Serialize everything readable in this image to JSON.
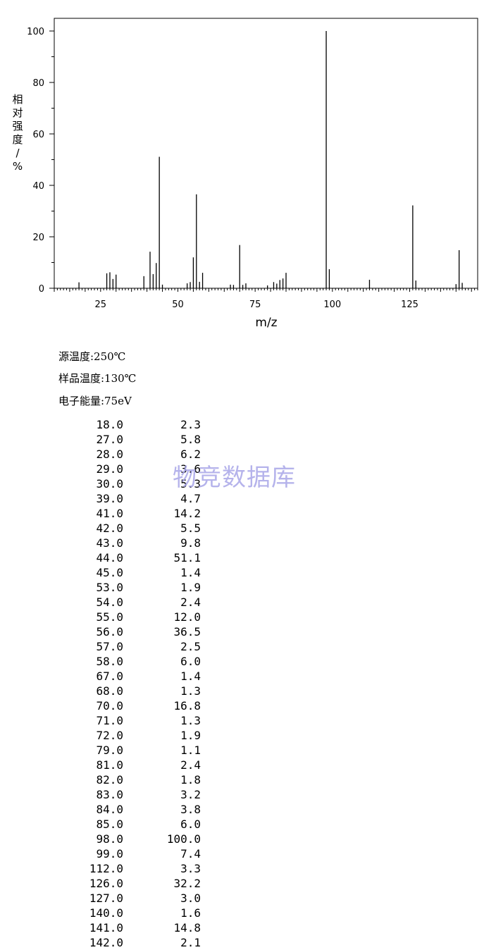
{
  "chart_data": {
    "type": "bar",
    "xlabel": "m/z",
    "ylabel": "相对强度/%",
    "xlim": [
      10,
      147
    ],
    "ylim": [
      0,
      105
    ],
    "x_ticks": [
      25,
      50,
      75,
      100,
      125
    ],
    "y_ticks": [
      0,
      20,
      40,
      60,
      80,
      100
    ],
    "grid": false,
    "peaks": [
      {
        "mz": 18.0,
        "intensity": 2.3
      },
      {
        "mz": 27.0,
        "intensity": 5.8
      },
      {
        "mz": 28.0,
        "intensity": 6.2
      },
      {
        "mz": 29.0,
        "intensity": 3.6
      },
      {
        "mz": 30.0,
        "intensity": 5.3
      },
      {
        "mz": 39.0,
        "intensity": 4.7
      },
      {
        "mz": 41.0,
        "intensity": 14.2
      },
      {
        "mz": 42.0,
        "intensity": 5.5
      },
      {
        "mz": 43.0,
        "intensity": 9.8
      },
      {
        "mz": 44.0,
        "intensity": 51.1
      },
      {
        "mz": 45.0,
        "intensity": 1.4
      },
      {
        "mz": 53.0,
        "intensity": 1.9
      },
      {
        "mz": 54.0,
        "intensity": 2.4
      },
      {
        "mz": 55.0,
        "intensity": 12.0
      },
      {
        "mz": 56.0,
        "intensity": 36.5
      },
      {
        "mz": 57.0,
        "intensity": 2.5
      },
      {
        "mz": 58.0,
        "intensity": 6.0
      },
      {
        "mz": 67.0,
        "intensity": 1.4
      },
      {
        "mz": 68.0,
        "intensity": 1.3
      },
      {
        "mz": 70.0,
        "intensity": 16.8
      },
      {
        "mz": 71.0,
        "intensity": 1.3
      },
      {
        "mz": 72.0,
        "intensity": 1.9
      },
      {
        "mz": 79.0,
        "intensity": 1.1
      },
      {
        "mz": 81.0,
        "intensity": 2.4
      },
      {
        "mz": 82.0,
        "intensity": 1.8
      },
      {
        "mz": 83.0,
        "intensity": 3.2
      },
      {
        "mz": 84.0,
        "intensity": 3.8
      },
      {
        "mz": 85.0,
        "intensity": 6.0
      },
      {
        "mz": 98.0,
        "intensity": 100.0
      },
      {
        "mz": 99.0,
        "intensity": 7.4
      },
      {
        "mz": 112.0,
        "intensity": 3.3
      },
      {
        "mz": 126.0,
        "intensity": 32.2
      },
      {
        "mz": 127.0,
        "intensity": 3.0
      },
      {
        "mz": 140.0,
        "intensity": 1.6
      },
      {
        "mz": 141.0,
        "intensity": 14.8
      },
      {
        "mz": 142.0,
        "intensity": 2.1
      }
    ]
  },
  "info": {
    "source_temp": "源温度:250℃",
    "sample_temp": "样品温度:130℃",
    "electron_energy": "电子能量:75eV"
  },
  "peak_table": [
    [
      "18.0",
      "2.3"
    ],
    [
      "27.0",
      "5.8"
    ],
    [
      "28.0",
      "6.2"
    ],
    [
      "29.0",
      "3.6"
    ],
    [
      "30.0",
      "5.3"
    ],
    [
      "39.0",
      "4.7"
    ],
    [
      "41.0",
      "14.2"
    ],
    [
      "42.0",
      "5.5"
    ],
    [
      "43.0",
      "9.8"
    ],
    [
      "44.0",
      "51.1"
    ],
    [
      "45.0",
      "1.4"
    ],
    [
      "53.0",
      "1.9"
    ],
    [
      "54.0",
      "2.4"
    ],
    [
      "55.0",
      "12.0"
    ],
    [
      "56.0",
      "36.5"
    ],
    [
      "57.0",
      "2.5"
    ],
    [
      "58.0",
      "6.0"
    ],
    [
      "67.0",
      "1.4"
    ],
    [
      "68.0",
      "1.3"
    ],
    [
      "70.0",
      "16.8"
    ],
    [
      "71.0",
      "1.3"
    ],
    [
      "72.0",
      "1.9"
    ],
    [
      "79.0",
      "1.1"
    ],
    [
      "81.0",
      "2.4"
    ],
    [
      "82.0",
      "1.8"
    ],
    [
      "83.0",
      "3.2"
    ],
    [
      "84.0",
      "3.8"
    ],
    [
      "85.0",
      "6.0"
    ],
    [
      "98.0",
      "100.0"
    ],
    [
      "99.0",
      "7.4"
    ],
    [
      "112.0",
      "3.3"
    ],
    [
      "126.0",
      "32.2"
    ],
    [
      "127.0",
      "3.0"
    ],
    [
      "140.0",
      "1.6"
    ],
    [
      "141.0",
      "14.8"
    ],
    [
      "142.0",
      "2.1"
    ]
  ],
  "watermark": "物竞数据库",
  "colors": {
    "axis": "#000000",
    "bar": "#000000",
    "watermark": "#a9a6e8"
  }
}
